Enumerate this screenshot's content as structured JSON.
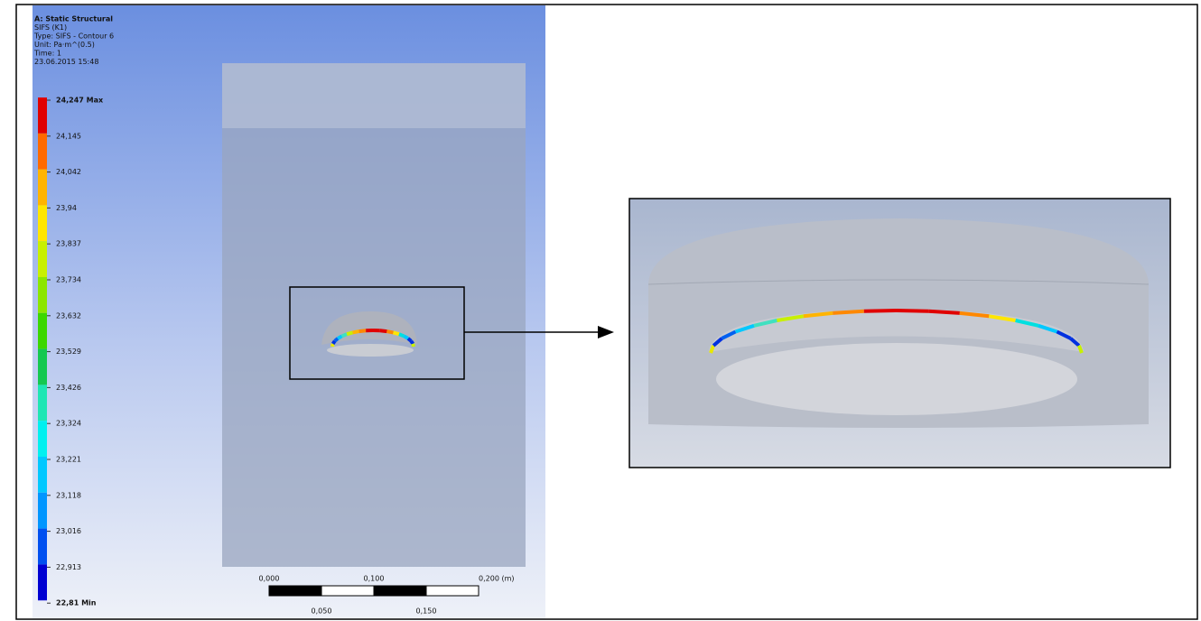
{
  "header": {
    "lines": [
      "A: Static Structural",
      "SIFS (K1)",
      "Type: SIFS - Contour 6",
      "Unit: Pa·m^(0.5)",
      "Time: 1",
      "23.06.2015 15:48"
    ]
  },
  "legend": {
    "labels": [
      "24,247 Max",
      "24,145",
      "24,042",
      "23,94",
      "23,837",
      "23,734",
      "23,632",
      "23,529",
      "23,426",
      "23,324",
      "23,221",
      "23,118",
      "23,016",
      "22,913",
      "22,81 Min"
    ],
    "colors": [
      "#e00000",
      "#ff6a00",
      "#ffb400",
      "#ffe600",
      "#c8f000",
      "#8ce600",
      "#3cd700",
      "#14c850",
      "#1ee6b4",
      "#00f0f0",
      "#00c8ff",
      "#0096ff",
      "#0050f0",
      "#0000d2"
    ]
  },
  "scale": {
    "top": [
      "0,000",
      "0,100",
      "0,200 (m)"
    ],
    "bottom": [
      "0,050",
      "0,150"
    ]
  }
}
